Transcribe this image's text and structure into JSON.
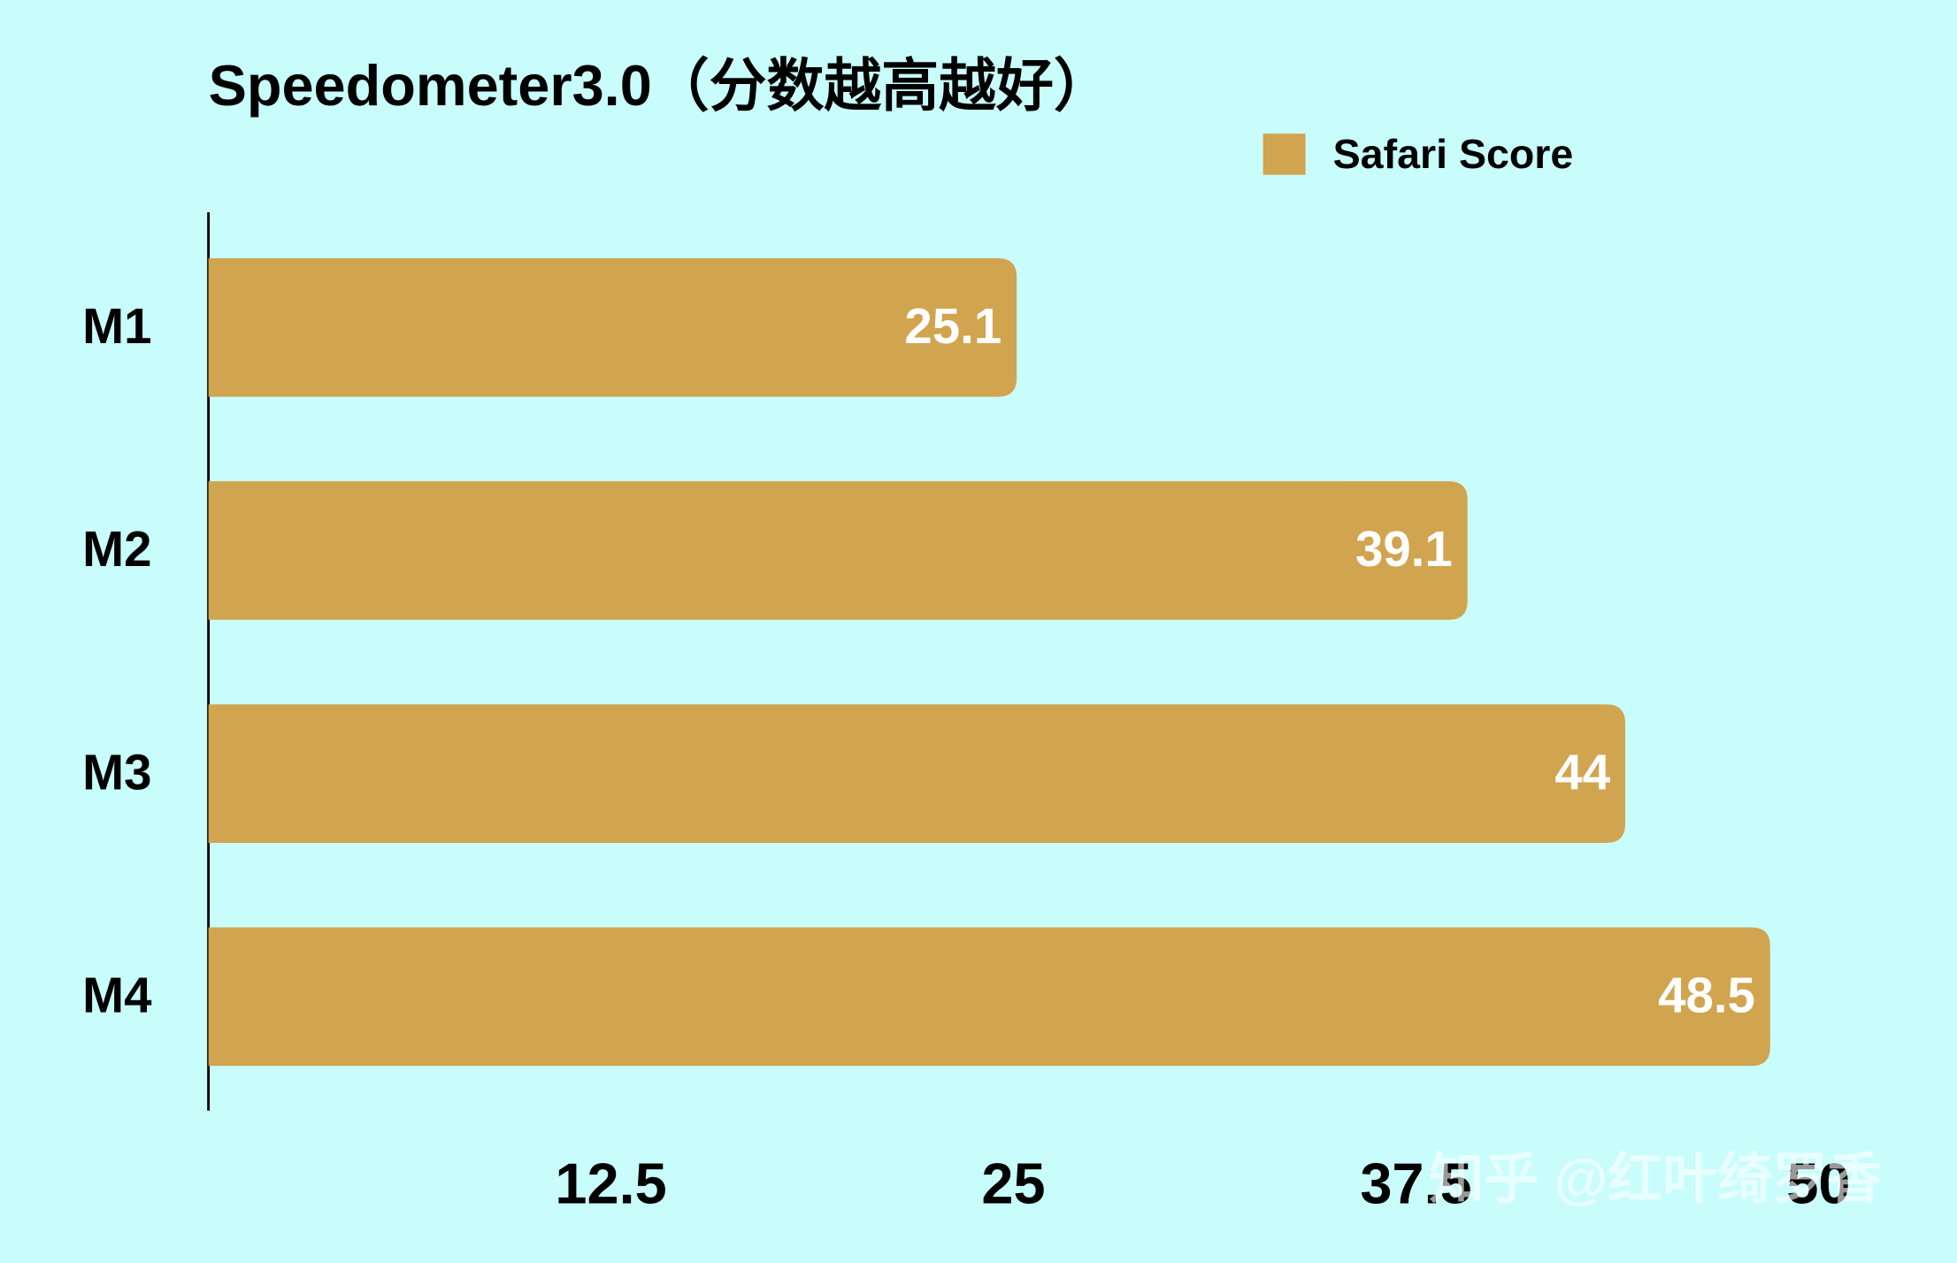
{
  "chart_data": {
    "type": "hbar",
    "title": "Speedometer3.0（分数越高越好）",
    "categories": [
      "M1",
      "M2",
      "M3",
      "M4"
    ],
    "series": [
      {
        "name": "Safari Score",
        "color": "#d1a44f",
        "values": [
          25.1,
          39.1,
          44,
          48.5
        ]
      }
    ],
    "xlim": [
      0,
      50
    ],
    "xticks": [
      12.5,
      25,
      37.5,
      50
    ],
    "grid": false,
    "legend": "top-right",
    "watermark": "知乎 @红叶绮罗香"
  }
}
